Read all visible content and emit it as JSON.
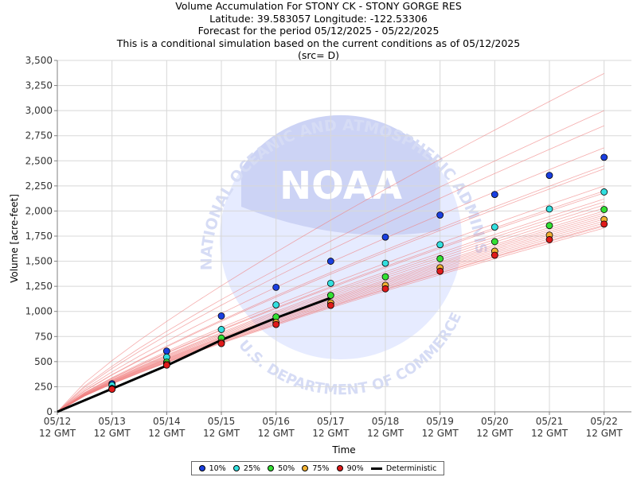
{
  "title": {
    "line1": "Volume Accumulation For STONY CK - STONY GORGE RES",
    "line2": "Latitude: 39.583057 Longitude: -122.53306",
    "line3": "Forecast for the period 05/12/2025 - 05/22/2025",
    "line4": "This is a conditional simulation based on the current conditions as of 05/12/2025",
    "line5": "(src= D)"
  },
  "watermark": {
    "logo_text": "NOAA",
    "ring_text": "NATIONAL OCEANIC AND ATMOSPHERIC ADMINISTRATION",
    "bottom_text": "U.S. DEPARTMENT OF COMMERCE"
  },
  "chart_data": {
    "type": "line",
    "xlabel": "Time",
    "ylabel": "Volume [acre-feet]",
    "ylim": [
      0,
      3500
    ],
    "xlim": [
      0,
      10.5
    ],
    "yticks": [
      0,
      250,
      500,
      750,
      1000,
      1250,
      1500,
      1750,
      2000,
      2250,
      2500,
      2750,
      3000,
      3250,
      3500
    ],
    "categories": [
      "05/12",
      "05/13",
      "05/14",
      "05/15",
      "05/16",
      "05/17",
      "05/18",
      "05/19",
      "05/20",
      "05/21",
      "05/22"
    ],
    "tick_sublabel": "12 GMT",
    "grid": true,
    "legend_position": "bottom",
    "series": [
      {
        "name": "10%",
        "color": "#1a3fe0",
        "values": [
          null,
          280,
          605,
          955,
          1240,
          1500,
          1740,
          1960,
          2165,
          2355,
          2535
        ]
      },
      {
        "name": "25%",
        "color": "#33e0e0",
        "values": [
          null,
          265,
          545,
          820,
          1065,
          1280,
          1480,
          1665,
          1840,
          2020,
          2190
        ]
      },
      {
        "name": "50%",
        "color": "#33e033",
        "values": [
          null,
          232,
          495,
          735,
          945,
          1160,
          1345,
          1525,
          1695,
          1855,
          2015
        ]
      },
      {
        "name": "75%",
        "color": "#f2b233",
        "values": [
          null,
          230,
          475,
          690,
          890,
          1085,
          1260,
          1435,
          1600,
          1760,
          1915
        ]
      },
      {
        "name": "90%",
        "color": "#e01a1a",
        "values": [
          null,
          225,
          465,
          680,
          870,
          1060,
          1225,
          1400,
          1560,
          1715,
          1870
        ]
      }
    ],
    "deterministic": {
      "name": "Deterministic",
      "color": "#000000",
      "x": [
        0,
        1,
        2,
        3,
        4,
        5
      ],
      "values": [
        0,
        230,
        460,
        715,
        935,
        1135
      ]
    },
    "ensemble_end_values": [
      3370,
      3000,
      2850,
      2630,
      2450,
      2420,
      2250,
      2200,
      2180,
      2120,
      2090,
      2060,
      2030,
      2000,
      1980,
      1960,
      1940,
      1920,
      1900,
      1880,
      1860,
      1850,
      1830
    ],
    "ensemble_color": "#f08080"
  }
}
